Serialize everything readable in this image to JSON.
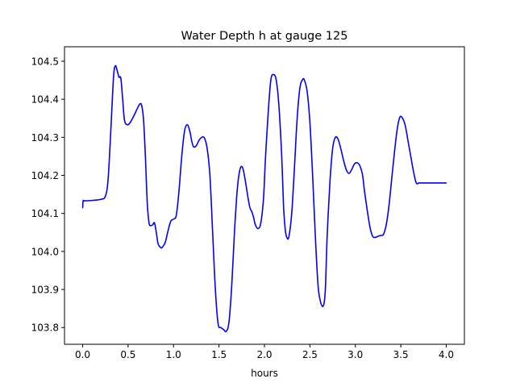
{
  "chart_data": {
    "type": "line",
    "title": "Water Depth h at gauge 125",
    "xlabel": "hours",
    "ylabel": "",
    "xlim": [
      -0.2,
      4.2
    ],
    "ylim": [
      103.756,
      104.538
    ],
    "xticks": [
      0.0,
      0.5,
      1.0,
      1.5,
      2.0,
      2.5,
      3.0,
      3.5,
      4.0
    ],
    "xtick_labels": [
      "0.0",
      "0.5",
      "1.0",
      "1.5",
      "2.0",
      "2.5",
      "3.0",
      "3.5",
      "4.0"
    ],
    "yticks": [
      103.8,
      103.9,
      104.0,
      104.1,
      104.2,
      104.3,
      104.4,
      104.5
    ],
    "ytick_labels": [
      "103.8",
      "103.9",
      "104.0",
      "104.1",
      "104.2",
      "104.3",
      "104.4",
      "104.5"
    ],
    "grid": false,
    "series": [
      {
        "color": "#0000ff",
        "x": [
          0.0,
          0.005,
          0.02,
          0.1,
          0.2,
          0.25,
          0.28,
          0.31,
          0.34,
          0.36,
          0.38,
          0.4,
          0.42,
          0.44,
          0.46,
          0.49,
          0.52,
          0.56,
          0.6,
          0.63,
          0.65,
          0.67,
          0.69,
          0.71,
          0.73,
          0.75,
          0.77,
          0.79,
          0.81,
          0.83,
          0.86,
          0.88,
          0.91,
          0.94,
          0.97,
          1.0,
          1.03,
          1.06,
          1.09,
          1.12,
          1.15,
          1.18,
          1.2,
          1.22,
          1.25,
          1.28,
          1.31,
          1.34,
          1.37,
          1.4,
          1.43,
          1.46,
          1.49,
          1.52,
          1.55,
          1.58,
          1.61,
          1.64,
          1.67,
          1.7,
          1.73,
          1.76,
          1.79,
          1.82,
          1.84,
          1.86,
          1.88,
          1.9,
          1.93,
          1.96,
          1.99,
          2.01,
          2.04,
          2.07,
          2.1,
          2.13,
          2.16,
          2.19,
          2.21,
          2.23,
          2.25,
          2.27,
          2.3,
          2.33,
          2.36,
          2.39,
          2.42,
          2.44,
          2.47,
          2.5,
          2.53,
          2.56,
          2.59,
          2.62,
          2.65,
          2.67,
          2.69,
          2.72,
          2.75,
          2.78,
          2.81,
          2.84,
          2.87,
          2.9,
          2.93,
          2.96,
          2.99,
          3.02,
          3.05,
          3.08,
          3.1,
          3.13,
          3.16,
          3.19,
          3.22,
          3.25,
          3.28,
          3.31,
          3.34,
          3.37,
          3.4,
          3.43,
          3.46,
          3.49,
          3.52,
          3.55,
          3.58,
          3.61,
          3.64,
          3.67,
          3.7,
          3.73,
          3.76,
          3.79,
          3.82,
          3.85,
          3.88,
          3.9,
          3.92,
          3.94,
          3.96,
          3.98,
          4.0
        ],
        "y": [
          104.115,
          104.133,
          104.133,
          104.134,
          104.137,
          104.145,
          104.19,
          104.32,
          104.46,
          104.488,
          104.475,
          104.458,
          104.455,
          104.4,
          104.345,
          104.333,
          104.338,
          104.355,
          104.375,
          104.388,
          104.383,
          104.345,
          104.25,
          104.13,
          104.075,
          104.068,
          104.07,
          104.075,
          104.05,
          104.02,
          104.01,
          104.012,
          104.025,
          104.055,
          104.08,
          104.085,
          104.095,
          104.16,
          104.25,
          104.315,
          104.333,
          104.315,
          104.29,
          104.275,
          104.278,
          104.292,
          104.3,
          104.298,
          104.27,
          104.2,
          104.05,
          103.9,
          103.81,
          103.8,
          103.795,
          103.79,
          103.815,
          103.91,
          104.05,
          104.16,
          104.215,
          104.22,
          104.185,
          104.14,
          104.115,
          104.105,
          104.09,
          104.07,
          104.06,
          104.075,
          104.14,
          104.24,
          104.36,
          104.45,
          104.465,
          104.45,
          104.38,
          104.25,
          104.12,
          104.055,
          104.035,
          104.04,
          104.1,
          104.22,
          104.35,
          104.43,
          104.452,
          104.45,
          104.42,
          104.34,
          104.2,
          104.04,
          103.91,
          103.865,
          103.858,
          103.9,
          104.04,
          104.18,
          104.27,
          104.3,
          104.295,
          104.27,
          104.24,
          104.215,
          104.205,
          104.215,
          104.23,
          104.233,
          104.225,
          104.2,
          104.16,
          104.11,
          104.065,
          104.04,
          104.037,
          104.04,
          104.042,
          104.045,
          104.07,
          104.12,
          104.19,
          104.26,
          104.32,
          104.353,
          104.35,
          104.33,
          104.29,
          104.25,
          104.21,
          104.18,
          104.18,
          104.18,
          104.18,
          104.18,
          104.18,
          104.18,
          104.18,
          104.18,
          104.18,
          104.18,
          104.18,
          104.18,
          104.18
        ]
      }
    ]
  }
}
